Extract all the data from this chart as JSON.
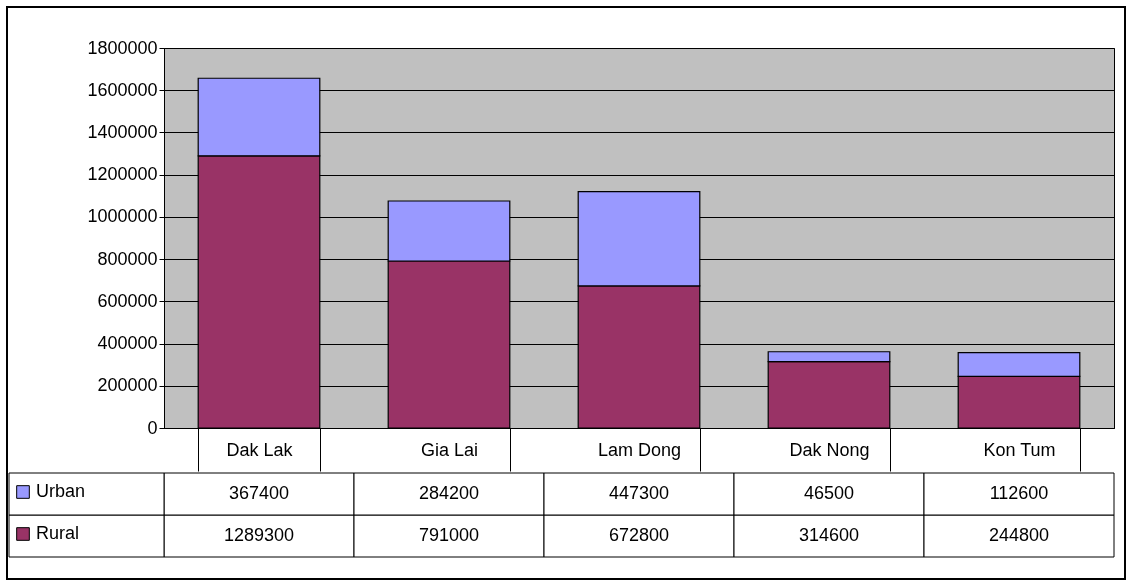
{
  "chart_data": {
    "type": "bar",
    "stacked": true,
    "categories": [
      "Dak Lak",
      "Gia Lai",
      "Lam Dong",
      "Dak Nong",
      "Kon Tum"
    ],
    "series": [
      {
        "name": "Rural",
        "color": "#993366",
        "values": [
          1289300,
          791000,
          672800,
          314600,
          244800
        ]
      },
      {
        "name": "Urban",
        "color": "#9999ff",
        "values": [
          367400,
          284200,
          447300,
          46500,
          112600
        ]
      }
    ],
    "ylim": [
      0,
      1800000
    ],
    "yticks": [
      0,
      200000,
      400000,
      600000,
      800000,
      1000000,
      1200000,
      1400000,
      1600000,
      1800000
    ],
    "grid": "y",
    "legend": "bottom left",
    "data_labels": true
  }
}
